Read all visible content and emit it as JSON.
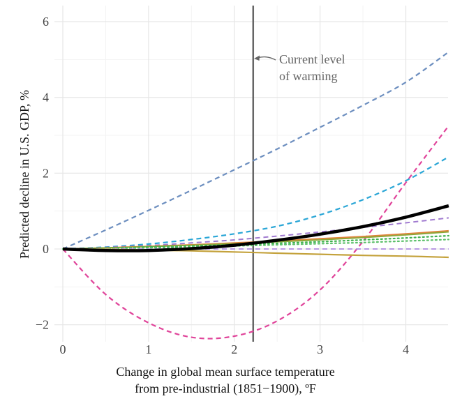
{
  "chart_data": {
    "type": "line",
    "xlabel": [
      "Change in global mean surface temperature",
      "from pre-industrial (1851−1900), ºF"
    ],
    "ylabel": "Predicted decline in U.S. GDP, %",
    "xlim": [
      -0.1,
      4.5
    ],
    "ylim": [
      -2.4,
      6.3
    ],
    "x_ticks": [
      0,
      1,
      2,
      3,
      4
    ],
    "x_tick_labels": [
      "0",
      "1",
      "2",
      "3",
      "4"
    ],
    "y_ticks": [
      -2,
      0,
      2,
      4,
      6
    ],
    "y_tick_labels": [
      "−2",
      "0",
      "2",
      "4",
      "6"
    ],
    "grid": true,
    "reference_line": {
      "x": 2.22,
      "color": "#666666"
    },
    "annotation": {
      "lines": [
        "Current level",
        "of warming"
      ],
      "x": 2.22,
      "y": 5.0
    },
    "x": [
      0,
      0.5,
      1,
      1.5,
      2,
      2.5,
      3,
      3.5,
      4,
      4.5
    ],
    "series": [
      {
        "color": "#6c8ebf",
        "style": "dashed",
        "width": 2.2,
        "values": [
          0,
          0.5,
          1.02,
          1.55,
          2.09,
          2.64,
          3.21,
          3.79,
          4.4,
          5.2
        ]
      },
      {
        "color": "#e0449a",
        "style": "dashed",
        "width": 2.2,
        "values": [
          0,
          -1.2,
          -1.95,
          -2.33,
          -2.3,
          -1.9,
          -1.08,
          0.2,
          1.75,
          3.25
        ]
      },
      {
        "color": "#2aa6d6",
        "style": "dashed",
        "width": 2.2,
        "values": [
          0,
          0.05,
          0.13,
          0.25,
          0.4,
          0.6,
          0.9,
          1.3,
          1.8,
          2.43
        ]
      },
      {
        "color": "#a07ad0",
        "style": "dashed",
        "width": 2.0,
        "values": [
          0,
          0.04,
          0.09,
          0.16,
          0.24,
          0.34,
          0.45,
          0.57,
          0.69,
          0.82
        ]
      },
      {
        "color": "#e0843c",
        "style": "solid",
        "width": 2.0,
        "values": [
          0,
          0.03,
          0.07,
          0.11,
          0.16,
          0.21,
          0.27,
          0.33,
          0.4,
          0.48
        ]
      },
      {
        "color": "#8aa838",
        "style": "solid",
        "width": 1.8,
        "values": [
          0,
          0.03,
          0.06,
          0.1,
          0.14,
          0.19,
          0.24,
          0.3,
          0.37,
          0.45
        ]
      },
      {
        "color": "#3fb24f",
        "style": "dotted",
        "width": 2.2,
        "values": [
          0,
          0.02,
          0.05,
          0.08,
          0.11,
          0.15,
          0.19,
          0.24,
          0.29,
          0.35
        ]
      },
      {
        "color": "#5cc06a",
        "style": "dotted",
        "width": 2.2,
        "values": [
          0,
          0.01,
          0.03,
          0.05,
          0.08,
          0.11,
          0.14,
          0.17,
          0.21,
          0.25
        ]
      },
      {
        "color": "#b08ae0",
        "style": "dashed",
        "width": 1.8,
        "values": [
          0,
          0.0,
          0.0,
          0.0,
          0.0,
          0.0,
          0.0,
          0.0,
          0.0,
          0.0
        ]
      },
      {
        "color": "#c4a23c",
        "style": "solid",
        "width": 2.2,
        "values": [
          0,
          -0.01,
          -0.03,
          -0.05,
          -0.08,
          -0.11,
          -0.14,
          -0.17,
          -0.19,
          -0.22
        ]
      },
      {
        "color": "#000000",
        "style": "solid",
        "width": 4.5,
        "values": [
          0,
          -0.04,
          -0.04,
          0.01,
          0.1,
          0.23,
          0.39,
          0.59,
          0.84,
          1.14
        ]
      }
    ]
  }
}
